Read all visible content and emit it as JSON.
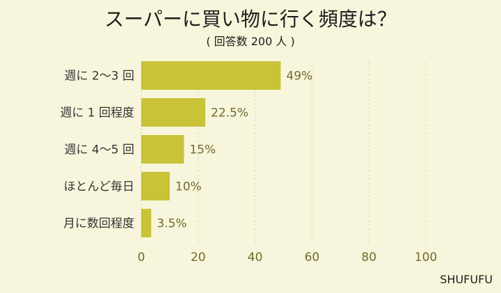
{
  "header": {
    "title": "スーパーに買い物に行く頻度は？",
    "subtitle": "( 回答数 200 人 )"
  },
  "footer": {
    "brand": "SHUFUFU"
  },
  "chart_data": {
    "type": "bar",
    "orientation": "horizontal",
    "categories": [
      "週に 2〜3 回",
      "週に 1 回程度",
      "週に 4〜5 回",
      "ほとんど毎日",
      "月に数回程度"
    ],
    "values": [
      49,
      22.5,
      15,
      10,
      3.5
    ],
    "value_labels": [
      "49%",
      "22.5%",
      "15%",
      "10%",
      "3.5%"
    ],
    "xlim": [
      0,
      100
    ],
    "xticks": [
      "0",
      "20",
      "40",
      "60",
      "80",
      "100"
    ],
    "grid": true,
    "colors": {
      "bar": "#c8c337",
      "axis_text": "#6f6a2c",
      "category_text": "#333333",
      "grid": "#d9d6b8"
    }
  }
}
